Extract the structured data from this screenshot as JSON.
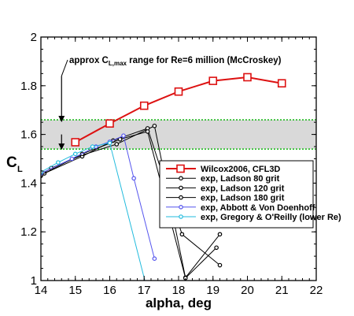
{
  "chart_data": {
    "type": "line",
    "xlabel": "alpha, deg",
    "ylabel": "C",
    "ylabel_sub": "L",
    "xlim": [
      14,
      22
    ],
    "ylim": [
      1.0,
      2.0
    ],
    "x_ticks": [
      14,
      15,
      16,
      17,
      18,
      19,
      20,
      21,
      22
    ],
    "y_ticks": [
      1.0,
      1.2,
      1.4,
      1.6,
      1.8,
      2.0
    ],
    "x_tick_labels": [
      "14",
      "15",
      "16",
      "17",
      "18",
      "19",
      "20",
      "21",
      "22"
    ],
    "y_tick_labels": [
      "1",
      "1.2",
      "1.4",
      "1.6",
      "1.8",
      "2"
    ],
    "grid": false,
    "legend_position": "center-right",
    "band": {
      "ymin": 1.54,
      "ymax": 1.66,
      "fill": "#d9d9d9",
      "edge_color": "#22bb22"
    },
    "annotation": {
      "text_before": "approx C",
      "text_sub": "L,max",
      "text_after": " range for Re=6 million (McCroskey)",
      "pointer_x": 14.6,
      "pointer_y": 1.84
    },
    "series": [
      {
        "name": "Wilcox2006, CFL3D",
        "color": "#dd1111",
        "marker": "square",
        "x": [
          15,
          16,
          17,
          18,
          19,
          20,
          21
        ],
        "y": [
          1.568,
          1.645,
          1.718,
          1.776,
          1.82,
          1.835,
          1.81
        ]
      },
      {
        "name": "exp, Ladson 80 grit",
        "color": "#000000",
        "marker": "dot",
        "x": [
          14,
          14.3,
          15.2,
          16.2,
          17.3,
          18.2,
          19.2
        ],
        "y": [
          1.435,
          1.462,
          1.515,
          1.56,
          1.635,
          1.012,
          1.19
        ]
      },
      {
        "name": "exp, Ladson 120 grit",
        "color": "#000000",
        "marker": "dot",
        "x": [
          14,
          14.1,
          15.2,
          16.1,
          17.1,
          18.1,
          19.2
        ],
        "y": [
          1.43,
          1.44,
          1.51,
          1.575,
          1.625,
          1.19,
          1.063
        ]
      },
      {
        "name": "exp, Ladson 180 grit",
        "color": "#000000",
        "marker": "dot",
        "x": [
          14,
          15.2,
          16.3,
          17.1,
          18.2,
          19.1
        ],
        "y": [
          1.433,
          1.52,
          1.58,
          1.612,
          1.01,
          1.135
        ]
      },
      {
        "name": "exp, Abbott & Von Doenhoff",
        "color": "#5555ee",
        "marker": "circle",
        "x": [
          14,
          14.9,
          15.6,
          16,
          16.4,
          16.7,
          17.3
        ],
        "y": [
          1.44,
          1.5,
          1.55,
          1.57,
          1.595,
          1.42,
          1.09
        ]
      },
      {
        "name": "exp, Gregory & O'Reilly (lower Re)",
        "color": "#22bbdd",
        "marker": "circle",
        "x": [
          14,
          14.5,
          15,
          15.5,
          16,
          17.2
        ],
        "y": [
          1.445,
          1.485,
          1.52,
          1.55,
          1.565,
          0.9
        ]
      }
    ]
  }
}
